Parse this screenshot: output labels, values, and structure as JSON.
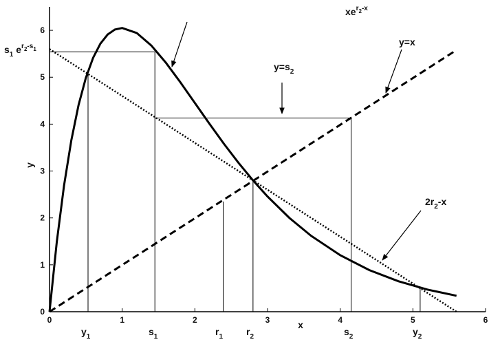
{
  "chart_data": {
    "type": "line",
    "xlabel": "x",
    "ylabel": "y",
    "xlim": [
      0,
      6
    ],
    "ylim": [
      0,
      6.5
    ],
    "xticks": [
      0,
      1,
      2,
      3,
      4,
      5,
      6
    ],
    "yticks": [
      0,
      1,
      2,
      3,
      4,
      5,
      6
    ],
    "color": "#000000",
    "series": [
      {
        "style": "thick",
        "x": [
          0,
          0.1,
          0.2,
          0.3,
          0.4,
          0.5,
          0.6,
          0.7,
          0.8,
          0.9,
          1.0,
          1.2,
          1.4,
          1.6,
          1.8,
          2.0,
          2.2,
          2.4,
          2.6,
          2.8,
          3.0,
          3.3,
          3.6,
          4.0,
          4.4,
          4.8,
          5.2,
          5.6
        ],
        "values": [
          0,
          1.488,
          2.693,
          3.655,
          4.409,
          4.987,
          5.415,
          5.716,
          5.911,
          6.017,
          6.05,
          5.944,
          5.677,
          5.312,
          4.893,
          4.451,
          4.009,
          3.58,
          3.176,
          2.8,
          2.456,
          2.001,
          1.618,
          1.205,
          0.888,
          0.65,
          0.472,
          0.34
        ]
      },
      {
        "style": "dashed",
        "x": [
          0,
          5.6
        ],
        "values": [
          0,
          5.58
        ]
      },
      {
        "style": "dotted",
        "x": [
          0,
          5.6
        ],
        "values": [
          5.6,
          0
        ]
      },
      {
        "style": "thin",
        "x": [
          0,
          1.45
        ],
        "values": [
          5.54,
          5.54
        ]
      },
      {
        "style": "thin",
        "x": [
          1.45,
          1.45
        ],
        "values": [
          0,
          5.54
        ]
      },
      {
        "style": "thin",
        "x": [
          1.45,
          4.15
        ],
        "values": [
          4.13,
          4.13
        ]
      },
      {
        "style": "thin",
        "x": [
          4.15,
          4.15
        ],
        "values": [
          0,
          4.13
        ]
      },
      {
        "style": "thin",
        "x": [
          0.53,
          0.53
        ],
        "values": [
          0,
          5.07
        ]
      },
      {
        "style": "thin",
        "x": [
          2.39,
          2.39
        ],
        "values": [
          0,
          2.35
        ]
      },
      {
        "style": "thin",
        "x": [
          2.8,
          2.8
        ],
        "values": [
          0,
          2.8
        ]
      },
      {
        "style": "thin",
        "x": [
          5.1,
          5.1
        ],
        "values": [
          0,
          0.5
        ]
      }
    ],
    "annotations": [
      {
        "parts": [
          {
            "t": "xe"
          },
          {
            "t": "r",
            "pos": "sup"
          },
          {
            "t": "2",
            "pos": "supsub"
          },
          {
            "t": "-x",
            "pos": "sup"
          }
        ]
      },
      {
        "parts": [
          {
            "t": "y=x"
          }
        ]
      },
      {
        "parts": [
          {
            "t": "y=s"
          },
          {
            "t": "2",
            "pos": "sub"
          }
        ]
      },
      {
        "parts": [
          {
            "t": "2r"
          },
          {
            "t": "2",
            "pos": "sub"
          },
          {
            "t": "-x"
          }
        ]
      },
      {
        "parts": [
          {
            "t": "s"
          },
          {
            "t": "1",
            "pos": "sub"
          },
          {
            "t": " e"
          },
          {
            "t": "r",
            "pos": "sup"
          },
          {
            "t": "2",
            "pos": "supsub"
          },
          {
            "t": "-s",
            "pos": "sup"
          },
          {
            "t": "1",
            "pos": "supsub"
          }
        ]
      },
      {
        "parts": [
          {
            "t": "y"
          },
          {
            "t": "1",
            "pos": "sub"
          }
        ]
      },
      {
        "parts": [
          {
            "t": "s"
          },
          {
            "t": "1",
            "pos": "sub"
          }
        ]
      },
      {
        "parts": [
          {
            "t": "r"
          },
          {
            "t": "1",
            "pos": "sub"
          }
        ]
      },
      {
        "parts": [
          {
            "t": "r"
          },
          {
            "t": "2",
            "pos": "sub"
          }
        ]
      },
      {
        "parts": [
          {
            "t": "s"
          },
          {
            "t": "2",
            "pos": "sub"
          }
        ]
      },
      {
        "parts": [
          {
            "t": "y"
          },
          {
            "t": "2",
            "pos": "sub"
          }
        ]
      }
    ]
  }
}
